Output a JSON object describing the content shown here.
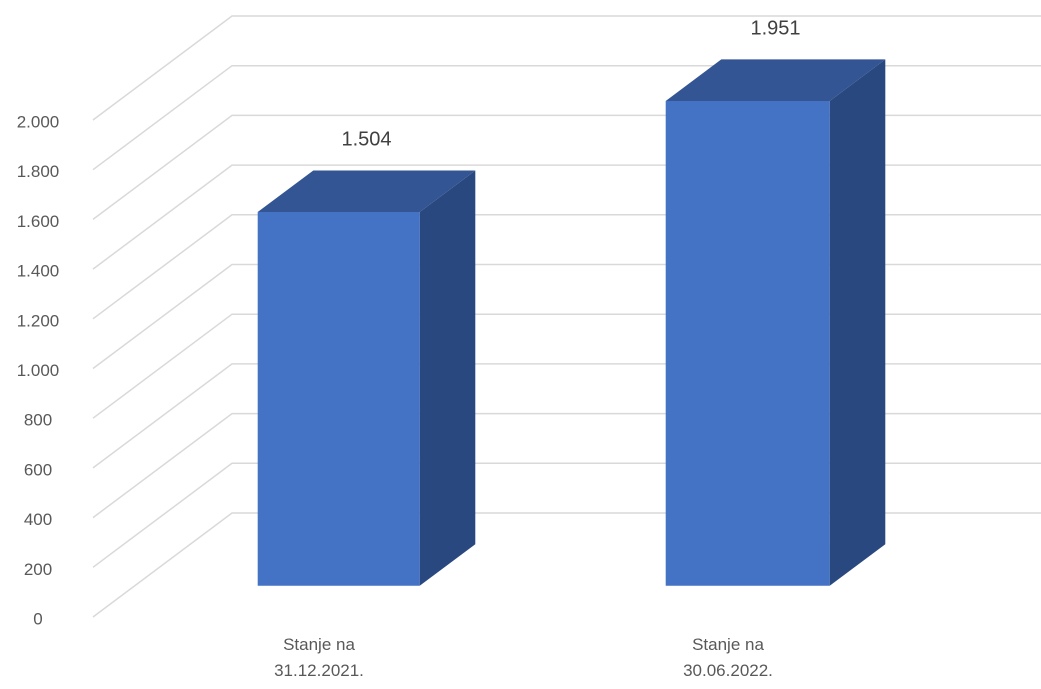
{
  "chart_data": {
    "type": "bar3d",
    "categories": [
      "Stanje na 31.12.2021.",
      "Stanje na 30.06.2022."
    ],
    "values": [
      1504,
      1951
    ],
    "value_labels": [
      "1.504",
      "1.951"
    ],
    "color": "#4472c4",
    "ylim": [
      0,
      2000
    ],
    "yticks": [
      0,
      200,
      400,
      600,
      800,
      {
        "value": 1000,
        "label": "1.000"
      },
      {
        "value": 1200,
        "label": "1.200"
      },
      {
        "value": 1400,
        "label": "1.400"
      },
      {
        "value": 1600,
        "label": "1.600"
      },
      {
        "value": 1800,
        "label": "1.800"
      },
      {
        "value": 2000,
        "label": "2.000"
      }
    ],
    "grid": true
  }
}
